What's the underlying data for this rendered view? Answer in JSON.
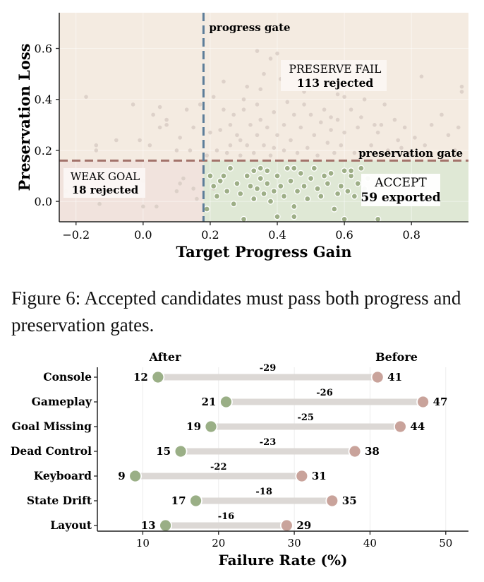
{
  "figure_top": {
    "xlabel": "Target Progress Gain",
    "ylabel": "Preservation Loss",
    "gates": {
      "progress": "progress gate",
      "preservation": "preservation gate"
    },
    "regions": {
      "preserve_fail": {
        "title": "PRESERVE FAIL",
        "count": "113 rejected"
      },
      "weak_goal": {
        "title": "WEAK GOAL",
        "count": "18 rejected"
      },
      "accept": {
        "title": "ACCEPT",
        "count": "59 exported"
      }
    },
    "colors": {
      "background": "#f4ebe1",
      "weak_goal": "#f1e3dd",
      "accept": "#dfe8d5",
      "progress_gate": "#5d7d99",
      "preservation_gate": "#a3736b",
      "rejected_point": "#d8cdc4",
      "accepted_point": "#9dae86"
    }
  },
  "caption": {
    "text": "Figure 6: Accepted candidates must pass both progress and preservation gates."
  },
  "figure_bottom": {
    "xlabel": "Failure Rate (%)",
    "after_label": "After",
    "before_label": "Before",
    "colors": {
      "after": "#9aaf86",
      "before": "#c9a39b",
      "bar": "#dcd8d5"
    }
  },
  "chart_data": [
    {
      "type": "scatter",
      "xlabel": "Target Progress Gain",
      "ylabel": "Preservation Loss",
      "xlim": [
        -0.25,
        0.97
      ],
      "ylim": [
        -0.08,
        0.74
      ],
      "xticks": [
        "−0.2",
        "0.0",
        "0.2",
        "0.4",
        "0.6",
        "0.8"
      ],
      "xtick_values": [
        -0.2,
        0.0,
        0.2,
        0.4,
        0.6,
        0.8
      ],
      "yticks": [
        "0.0",
        "0.2",
        "0.4",
        "0.6"
      ],
      "ytick_values": [
        0.0,
        0.2,
        0.4,
        0.6
      ],
      "progress_gate": 0.18,
      "preservation_gate": 0.16,
      "annotations": [
        "PRESERVE FAIL",
        "113 rejected",
        "WEAK GOAL",
        "18 rejected",
        "ACCEPT",
        "59 exported",
        "progress gate",
        "preservation gate"
      ],
      "series": [
        {
          "name": "rejected",
          "points": [
            [
              -0.17,
              0.41
            ],
            [
              -0.13,
              -0.01
            ],
            [
              -0.14,
              0.2
            ],
            [
              -0.14,
              0.22
            ],
            [
              -0.08,
              0.24
            ],
            [
              -0.03,
              0.38
            ],
            [
              -0.03,
              0.11
            ],
            [
              -0.01,
              0.24
            ],
            [
              0.0,
              0.08
            ],
            [
              0.0,
              -0.02
            ],
            [
              0.02,
              0.22
            ],
            [
              0.03,
              0.34
            ],
            [
              0.05,
              0.29
            ],
            [
              0.05,
              0.37
            ],
            [
              0.07,
              0.3
            ],
            [
              0.07,
              0.32
            ],
            [
              0.1,
              0.2
            ],
            [
              0.1,
              0.04
            ],
            [
              0.11,
              0.07
            ],
            [
              0.11,
              0.25
            ],
            [
              0.13,
              0.36
            ],
            [
              0.14,
              0.2
            ],
            [
              0.15,
              0.29
            ],
            [
              0.15,
              0.05
            ],
            [
              0.16,
              0.01
            ],
            [
              0.17,
              0.38
            ],
            [
              0.19,
              0.18
            ],
            [
              0.2,
              0.27
            ],
            [
              0.21,
              0.41
            ],
            [
              0.22,
              0.2
            ],
            [
              0.23,
              0.28
            ],
            [
              0.24,
              0.36
            ],
            [
              0.25,
              0.19
            ],
            [
              0.26,
              0.3
            ],
            [
              0.27,
              0.34
            ],
            [
              0.28,
              0.26
            ],
            [
              0.29,
              0.24
            ],
            [
              0.29,
              0.18
            ],
            [
              0.3,
              0.4
            ],
            [
              0.31,
              0.45
            ],
            [
              0.31,
              0.22
            ],
            [
              0.32,
              0.3
            ],
            [
              0.33,
              0.19
            ],
            [
              0.34,
              0.38
            ],
            [
              0.34,
              0.26
            ],
            [
              0.35,
              0.32
            ],
            [
              0.36,
              0.5
            ],
            [
              0.36,
              0.22
            ],
            [
              0.37,
              0.29
            ],
            [
              0.38,
              0.18
            ],
            [
              0.39,
              0.35
            ],
            [
              0.39,
              0.21
            ],
            [
              0.4,
              0.26
            ],
            [
              0.41,
              0.48
            ],
            [
              0.42,
              0.3
            ],
            [
              0.42,
              0.2
            ],
            [
              0.43,
              0.39
            ],
            [
              0.44,
              0.24
            ],
            [
              0.45,
              0.34
            ],
            [
              0.46,
              0.19
            ],
            [
              0.47,
              0.29
            ],
            [
              0.48,
              0.43
            ],
            [
              0.49,
              0.21
            ],
            [
              0.5,
              0.34
            ],
            [
              0.51,
              0.26
            ],
            [
              0.52,
              0.18
            ],
            [
              0.53,
              0.31
            ],
            [
              0.54,
              0.36
            ],
            [
              0.55,
              0.23
            ],
            [
              0.56,
              0.28
            ],
            [
              0.57,
              0.19
            ],
            [
              0.58,
              0.42
            ],
            [
              0.58,
              0.32
            ],
            [
              0.59,
              0.22
            ],
            [
              0.6,
              0.27
            ],
            [
              0.62,
              0.36
            ],
            [
              0.63,
              0.19
            ],
            [
              0.64,
              0.29
            ],
            [
              0.65,
              0.33
            ],
            [
              0.66,
              0.4
            ],
            [
              0.68,
              0.22
            ],
            [
              0.69,
              0.3
            ],
            [
              0.7,
              0.27
            ],
            [
              0.72,
              0.38
            ],
            [
              0.73,
              0.2
            ],
            [
              0.75,
              0.32
            ],
            [
              0.76,
              0.24
            ],
            [
              0.78,
              0.29
            ],
            [
              0.79,
              0.19
            ],
            [
              0.81,
              0.25
            ],
            [
              0.83,
              0.49
            ],
            [
              0.84,
              0.22
            ],
            [
              0.86,
              0.3
            ],
            [
              0.89,
              0.34
            ],
            [
              0.91,
              0.26
            ],
            [
              0.93,
              0.2
            ],
            [
              0.95,
              0.43
            ],
            [
              0.95,
              0.45
            ],
            [
              0.94,
              0.29
            ],
            [
              0.34,
              0.59
            ],
            [
              0.38,
              0.56
            ],
            [
              0.4,
              0.58
            ],
            [
              0.44,
              0.51
            ],
            [
              0.3,
              0.36
            ],
            [
              0.24,
              0.47
            ],
            [
              0.26,
              0.22
            ],
            [
              0.71,
              0.3
            ],
            [
              0.77,
              0.21
            ],
            [
              0.6,
              0.41
            ],
            [
              0.5,
              0.44
            ],
            [
              0.35,
              0.44
            ],
            [
              0.48,
              0.38
            ],
            [
              0.56,
              0.33
            ],
            [
              -0.23,
              0.04
            ],
            [
              0.21,
              0.05
            ],
            [
              -0.19,
              0.06
            ],
            [
              0.04,
              -0.02
            ],
            [
              0.12,
              0.09
            ]
          ]
        },
        {
          "name": "accepted",
          "points": [
            [
              0.2,
              0.1
            ],
            [
              0.21,
              0.06
            ],
            [
              0.22,
              0.02
            ],
            [
              0.19,
              -0.03
            ],
            [
              0.24,
              0.1
            ],
            [
              0.25,
              0.04
            ],
            [
              0.26,
              0.13
            ],
            [
              0.27,
              -0.01
            ],
            [
              0.28,
              0.07
            ],
            [
              0.29,
              0.03
            ],
            [
              0.31,
              0.1
            ],
            [
              0.32,
              0.06
            ],
            [
              0.33,
              0.12
            ],
            [
              0.33,
              0.01
            ],
            [
              0.34,
              0.05
            ],
            [
              0.35,
              0.09
            ],
            [
              0.36,
              0.03
            ],
            [
              0.37,
              0.07
            ],
            [
              0.37,
              0.12
            ],
            [
              0.38,
              0.0
            ],
            [
              0.39,
              0.04
            ],
            [
              0.4,
              0.1
            ],
            [
              0.41,
              0.06
            ],
            [
              0.42,
              0.02
            ],
            [
              0.43,
              0.13
            ],
            [
              0.44,
              0.08
            ],
            [
              0.45,
              -0.02
            ],
            [
              0.46,
              0.04
            ],
            [
              0.47,
              0.11
            ],
            [
              0.48,
              0.06
            ],
            [
              0.49,
              0.01
            ],
            [
              0.5,
              0.09
            ],
            [
              0.51,
              0.13
            ],
            [
              0.52,
              0.05
            ],
            [
              0.53,
              0.02
            ],
            [
              0.54,
              0.1
            ],
            [
              0.55,
              0.07
            ],
            [
              0.56,
              0.11
            ],
            [
              0.57,
              -0.03
            ],
            [
              0.58,
              0.03
            ],
            [
              0.59,
              0.06
            ],
            [
              0.6,
              0.12
            ],
            [
              0.61,
              0.04
            ],
            [
              0.62,
              0.1
            ],
            [
              0.63,
              0.02
            ],
            [
              0.64,
              0.07
            ],
            [
              0.65,
              0.13
            ],
            [
              0.66,
              0.05
            ],
            [
              0.67,
              0.09
            ],
            [
              0.68,
              0.0
            ],
            [
              0.3,
              -0.07
            ],
            [
              0.4,
              -0.06
            ],
            [
              0.45,
              -0.06
            ],
            [
              0.6,
              -0.07
            ],
            [
              0.7,
              -0.07
            ],
            [
              0.23,
              0.08
            ],
            [
              0.35,
              0.13
            ],
            [
              0.45,
              0.13
            ],
            [
              0.62,
              0.12
            ]
          ]
        }
      ]
    },
    {
      "type": "dumbbell",
      "xlabel": "Failure Rate (%)",
      "xlim": [
        4,
        53
      ],
      "xticks": [
        "10",
        "20",
        "30",
        "40",
        "50"
      ],
      "xtick_values": [
        10,
        20,
        30,
        40,
        50
      ],
      "legend": [
        "After",
        "Before"
      ],
      "categories": [
        "Console",
        "Gameplay",
        "Goal Missing",
        "Dead Control",
        "Keyboard",
        "State Drift",
        "Layout"
      ],
      "series": [
        {
          "name": "After",
          "values": [
            12,
            21,
            19,
            15,
            9,
            17,
            13
          ]
        },
        {
          "name": "Before",
          "values": [
            41,
            47,
            44,
            38,
            31,
            35,
            29
          ]
        }
      ],
      "delta_labels": [
        "-29",
        "-26",
        "-25",
        "-23",
        "-22",
        "-18",
        "-16"
      ]
    }
  ]
}
